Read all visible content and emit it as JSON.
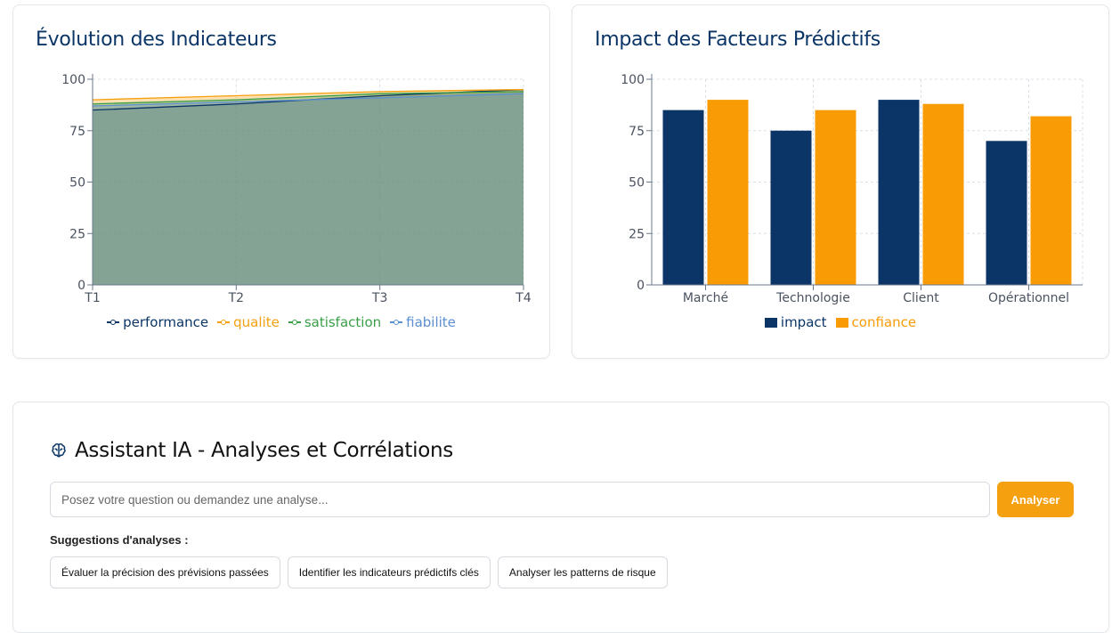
{
  "evolution": {
    "title": "Évolution des Indicateurs",
    "chart_data": {
      "type": "area",
      "title": "Évolution des Indicateurs",
      "x": [
        "T1",
        "T2",
        "T3",
        "T4"
      ],
      "ylim": [
        0,
        100
      ],
      "yticks": [
        0,
        25,
        50,
        75,
        100
      ],
      "grid": true,
      "legend": "bottom",
      "series": [
        {
          "name": "performance",
          "color": "#0b3566",
          "values": [
            85,
            88,
            92,
            95
          ]
        },
        {
          "name": "qualite",
          "color": "#f5a00f",
          "values": [
            90,
            92,
            94,
            95
          ]
        },
        {
          "name": "satisfaction",
          "color": "#3a9e48",
          "values": [
            88,
            90,
            93,
            94
          ]
        },
        {
          "name": "fiabilite",
          "color": "#5b8fd0",
          "values": [
            87,
            89,
            91,
            93
          ]
        }
      ]
    }
  },
  "impact": {
    "title": "Impact des Facteurs Prédictifs",
    "chart_data": {
      "type": "bar",
      "title": "Impact des Facteurs Prédictifs",
      "categories": [
        "Marché",
        "Technologie",
        "Client",
        "Opérationnel"
      ],
      "ylim": [
        0,
        100
      ],
      "yticks": [
        0,
        25,
        50,
        75,
        100
      ],
      "grid": true,
      "legend": "bottom",
      "series": [
        {
          "name": "impact",
          "color": "#0b3566",
          "values": [
            85,
            75,
            90,
            70
          ]
        },
        {
          "name": "confiance",
          "color": "#f99b05",
          "values": [
            90,
            85,
            88,
            82
          ]
        }
      ]
    }
  },
  "assistant": {
    "icon": "brain-icon",
    "title": "Assistant IA - Analyses et Corrélations",
    "input_placeholder": "Posez votre question ou demandez une analyse...",
    "input_value": "",
    "analyze_label": "Analyser",
    "suggestions_label": "Suggestions d'analyses :",
    "suggestions": [
      "Évaluer la précision des prévisions passées",
      "Identifier les indicateurs prédictifs clés",
      "Analyser les patterns de risque"
    ]
  }
}
